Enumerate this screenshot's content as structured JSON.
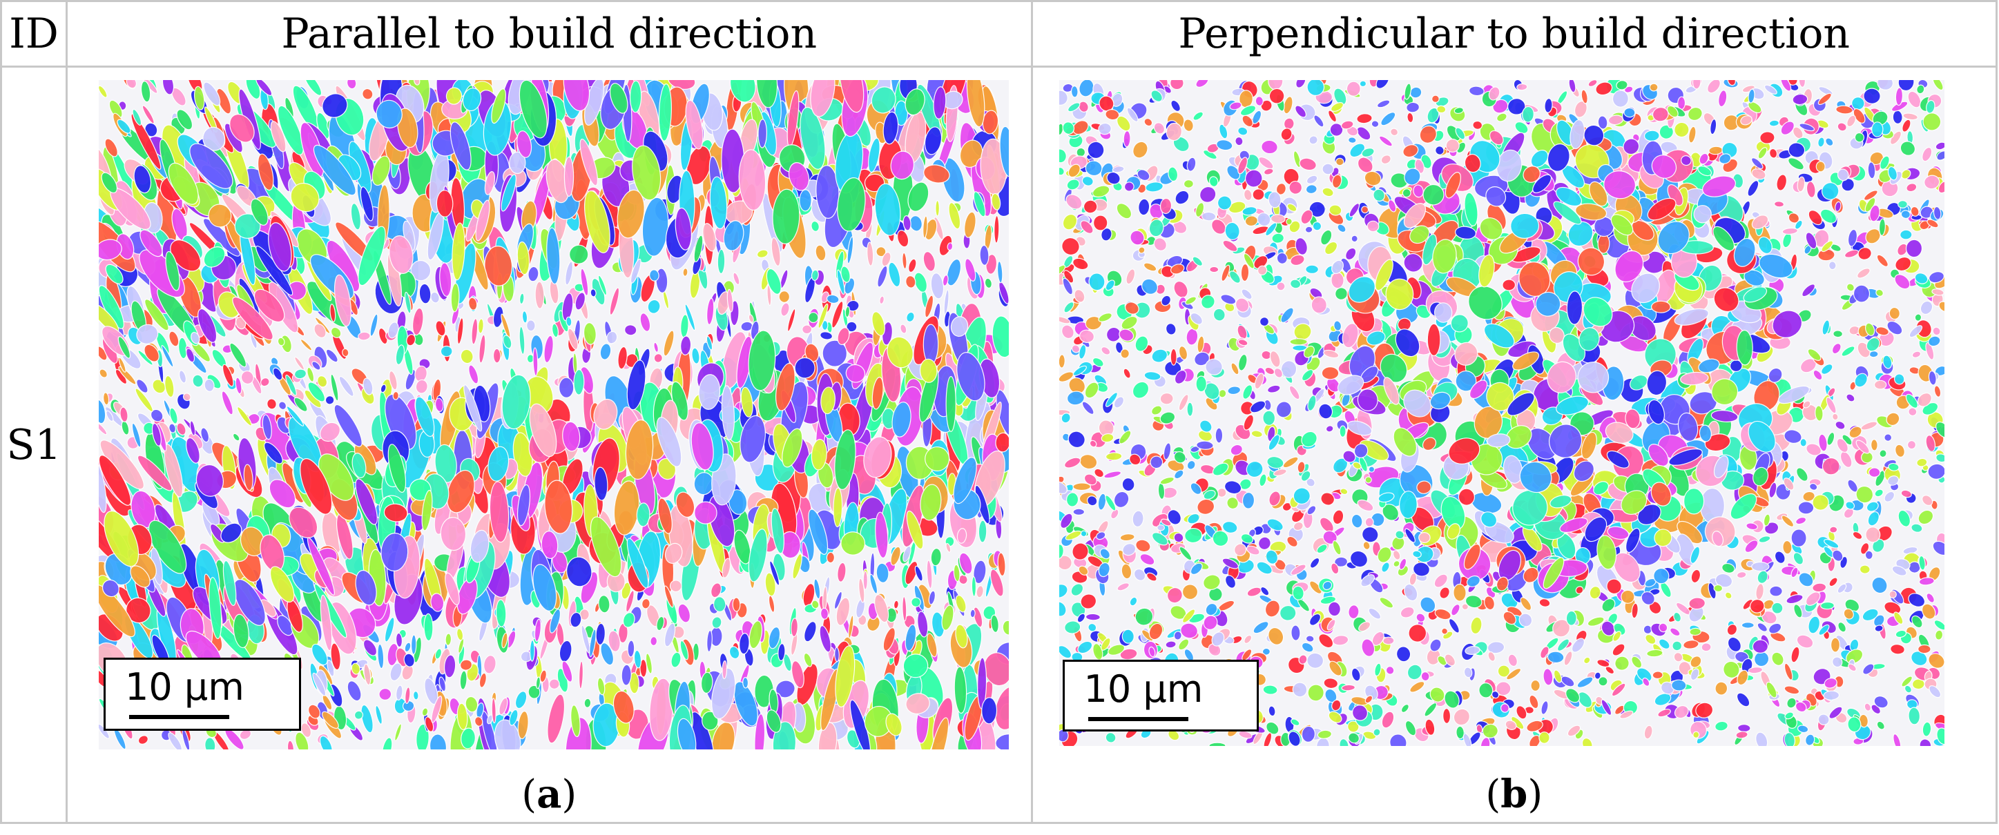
{
  "table": {
    "header": {
      "id": "ID",
      "col_a": "Parallel to build direction",
      "col_b": "Perpendicular to build direction"
    },
    "row": {
      "id": "S1"
    }
  },
  "panels": [
    {
      "label": "a",
      "scale_bar": "10 µm"
    },
    {
      "label": "b",
      "scale_bar": "10 µm"
    }
  ],
  "palette": [
    "#ff2a3a",
    "#ff5fa8",
    "#ff9fd6",
    "#e84cf0",
    "#9a2cf0",
    "#6a5cff",
    "#2a2af0",
    "#3aa8ff",
    "#27d9f5",
    "#39f0c0",
    "#2fe36a",
    "#9ef542",
    "#d9f53a",
    "#f5a33a",
    "#c9c9ff",
    "#ffb3c6",
    "#ff6040",
    "#30ffa8"
  ]
}
